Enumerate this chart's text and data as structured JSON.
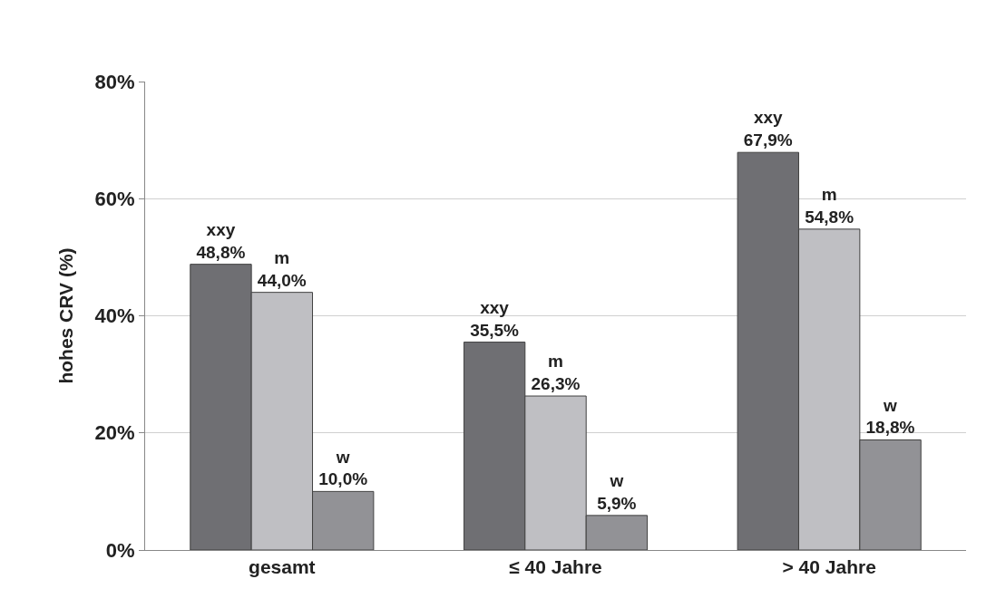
{
  "chart_data": {
    "type": "bar",
    "ylabel": "hohes CRV (%)",
    "categories": [
      "gesamt",
      "≤ 40 Jahre",
      "> 40 Jahre"
    ],
    "series": [
      {
        "name": "xxy",
        "color": "#6f6f73",
        "values": [
          48.8,
          35.5,
          67.9
        ],
        "value_labels": [
          "48,8%",
          "35,5%",
          "67,9%"
        ]
      },
      {
        "name": "m",
        "color": "#bfbfc3",
        "values": [
          44.0,
          26.3,
          54.8
        ],
        "value_labels": [
          "44,0%",
          "26,3%",
          "54,8%"
        ]
      },
      {
        "name": "w",
        "color": "#929296",
        "values": [
          10.0,
          5.9,
          18.8
        ],
        "value_labels": [
          "10,0%",
          "5,9%",
          "18,8%"
        ]
      }
    ],
    "ylim": [
      0,
      80
    ],
    "yticks": [
      {
        "value": 0,
        "label": "0%"
      },
      {
        "value": 20,
        "label": "20%"
      },
      {
        "value": 40,
        "label": "40%"
      },
      {
        "value": 60,
        "label": "60%"
      },
      {
        "value": 80,
        "label": "80%"
      }
    ],
    "grid": "y",
    "legend": false
  }
}
